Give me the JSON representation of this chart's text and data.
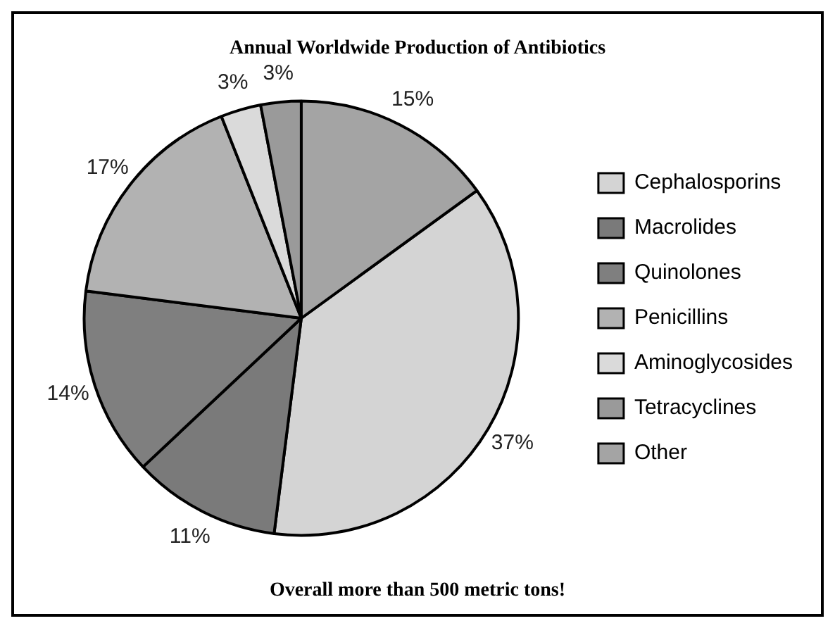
{
  "chart_data": {
    "type": "pie",
    "title": "Annual Worldwide Production of Antibiotics",
    "categories": [
      "Cephalosporins",
      "Macrolides",
      "Quinolones",
      "Penicillins",
      "Aminoglycosides",
      "Tetracyclines",
      "Other"
    ],
    "values": [
      37,
      11,
      14,
      17,
      3,
      3,
      15
    ],
    "value_labels": [
      "37%",
      "11%",
      "14%",
      "17%",
      "3%",
      "3%",
      "15%"
    ],
    "colors": [
      "#d4d4d4",
      "#7a7a7a",
      "#7f7f7f",
      "#b2b2b2",
      "#dadada",
      "#9a9a9a",
      "#a4a4a4"
    ],
    "legend": "right",
    "annotations": [
      "Overall more than 500 metric tons!"
    ]
  }
}
